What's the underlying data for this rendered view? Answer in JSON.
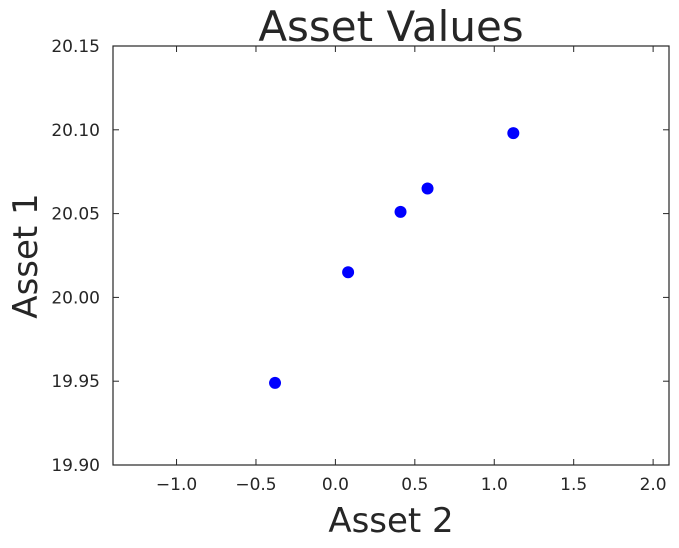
{
  "chart_data": {
    "type": "scatter",
    "title": "Asset Values",
    "xlabel": "Asset 2",
    "ylabel": "Asset 1",
    "xlim": [
      -1.4,
      2.1
    ],
    "ylim": [
      19.9,
      20.15
    ],
    "xticks": [
      -1.0,
      -0.5,
      0.0,
      0.5,
      1.0,
      1.5,
      2.0
    ],
    "xtick_labels": [
      "−1.0",
      "−0.5",
      "0.0",
      "0.5",
      "1.0",
      "1.5",
      "2.0"
    ],
    "yticks": [
      19.9,
      19.95,
      20.0,
      20.05,
      20.1,
      20.15
    ],
    "ytick_labels": [
      "19.90",
      "19.95",
      "20.00",
      "20.05",
      "20.10",
      "20.15"
    ],
    "grid": false,
    "series": [
      {
        "color": "#0000ff",
        "points": [
          {
            "x": -0.38,
            "y": 19.949
          },
          {
            "x": 0.08,
            "y": 20.015
          },
          {
            "x": 0.41,
            "y": 20.051
          },
          {
            "x": 0.58,
            "y": 20.065
          },
          {
            "x": 1.12,
            "y": 20.098
          }
        ]
      }
    ]
  }
}
